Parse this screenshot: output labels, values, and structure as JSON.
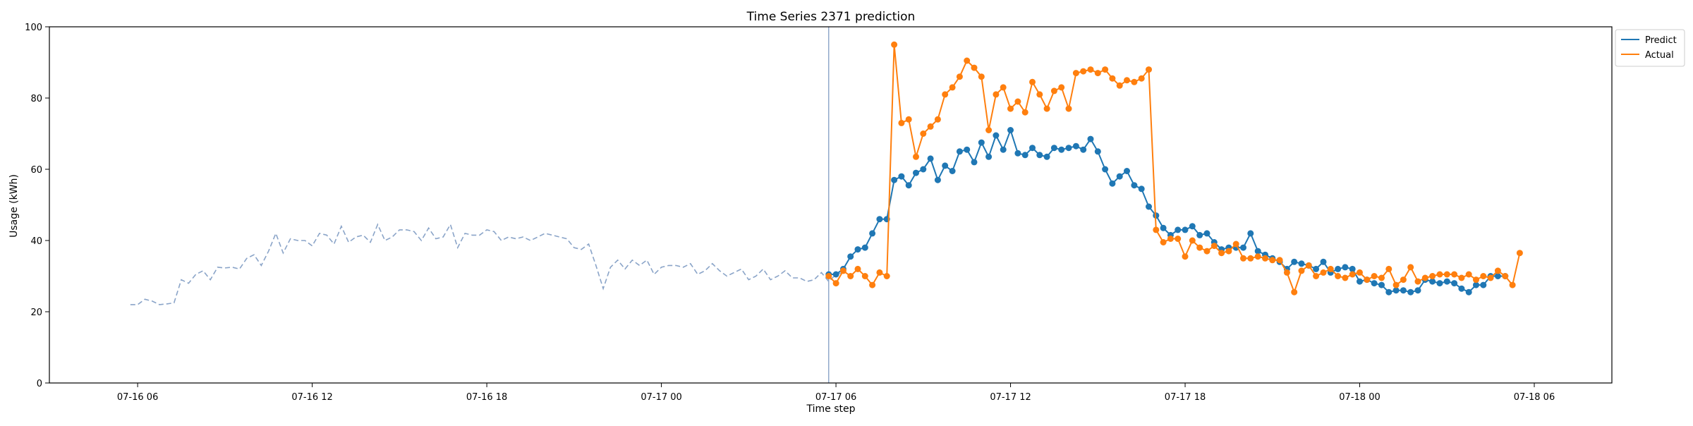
{
  "chart_data": {
    "type": "line",
    "title": "Time Series 2371 prediction",
    "xlabel": "Time step",
    "ylabel": "Usage (kWh)",
    "ylim": [
      0,
      100
    ],
    "yticks": [
      0,
      20,
      40,
      60,
      80,
      100
    ],
    "xlim": [
      "2016-07-16T02:58",
      "2016-07-18T08:40"
    ],
    "xticks": [
      {
        "t": "2016-07-16T06:00",
        "label": "07-16 06"
      },
      {
        "t": "2016-07-16T12:00",
        "label": "07-16 12"
      },
      {
        "t": "2016-07-16T18:00",
        "label": "07-16 18"
      },
      {
        "t": "2016-07-17T00:00",
        "label": "07-17 00"
      },
      {
        "t": "2016-07-17T06:00",
        "label": "07-17 06"
      },
      {
        "t": "2016-07-17T12:00",
        "label": "07-17 12"
      },
      {
        "t": "2016-07-17T18:00",
        "label": "07-17 18"
      },
      {
        "t": "2016-07-18T00:00",
        "label": "07-18 00"
      },
      {
        "t": "2016-07-18T06:00",
        "label": "07-18 06"
      }
    ],
    "grid": false,
    "legend_position": "upper-right-outside",
    "forecast_start": "2016-07-17T05:45",
    "interval_minutes": 15,
    "history": {
      "start": "2016-07-16T05:45",
      "color": "#8aa4c8",
      "style": "dashed",
      "values": [
        22,
        22,
        23.5,
        23,
        22,
        22.2,
        22.5,
        29,
        28,
        30.5,
        31.5,
        29,
        32.5,
        32.3,
        32.5,
        32,
        35,
        36,
        33,
        37,
        42,
        36.5,
        40.5,
        40,
        40,
        38.5,
        42,
        41.5,
        39,
        44,
        39.5,
        41,
        41.5,
        39.5,
        44.5,
        40,
        41,
        43,
        43,
        42.5,
        40,
        43.5,
        40.5,
        41,
        44.5,
        38,
        42,
        41.5,
        41.5,
        43,
        42.5,
        40,
        41,
        40.5,
        41,
        40,
        41,
        42,
        41.5,
        41,
        40.5,
        38,
        37.5,
        39,
        33,
        26.5,
        32.5,
        34.5,
        32,
        34.5,
        33,
        34.5,
        30.5,
        32.5,
        33,
        33,
        32.5,
        33.5,
        30.5,
        31.5,
        33.5,
        31.5,
        30,
        31,
        32,
        29,
        30,
        32,
        29,
        30,
        31.5,
        29.5,
        29.5,
        28.5,
        29,
        31,
        28.5,
        30.5,
        31
      ]
    },
    "series": [
      {
        "name": "Predict",
        "color": "#1f77b4",
        "start": "2016-07-17T05:45",
        "values": [
          30.5,
          30.5,
          32,
          35.5,
          37.5,
          38,
          42,
          46,
          46,
          57,
          58,
          55.5,
          59,
          60,
          63,
          57,
          61,
          59.5,
          65,
          65.5,
          62,
          67.5,
          63.5,
          69.5,
          65.5,
          71,
          64.5,
          64,
          66,
          64,
          63.5,
          66,
          65.5,
          66,
          66.5,
          65.5,
          68.5,
          65,
          60,
          56,
          58,
          59.5,
          55.5,
          54.5,
          49.5,
          47,
          43.5,
          41.5,
          43,
          43,
          44,
          41.5,
          42,
          39.5,
          37.5,
          38,
          38,
          38,
          42,
          37,
          36,
          35,
          34,
          32,
          34,
          33.5,
          33,
          32,
          34,
          31,
          32,
          32.5,
          32,
          28.5,
          29,
          28,
          27.5,
          25.5,
          26,
          26,
          25.5,
          26,
          29,
          28.5,
          28,
          28.5,
          28,
          26.5,
          25.5,
          27.5,
          27.5,
          30,
          30,
          30
        ]
      },
      {
        "name": "Actual",
        "color": "#ff7f0e",
        "start": "2016-07-17T05:45",
        "values": [
          30,
          28,
          31.5,
          30,
          32,
          30,
          27.5,
          31,
          30,
          95,
          73,
          74,
          63.5,
          70,
          72,
          74,
          81,
          83,
          86,
          90.5,
          88.5,
          86,
          71,
          81,
          83,
          77,
          79,
          76,
          84.5,
          81,
          77,
          82,
          83,
          77,
          87,
          87.5,
          88,
          87,
          88,
          85.5,
          83.5,
          85,
          84.5,
          85.5,
          88,
          43,
          39.5,
          40.5,
          40.5,
          35.5,
          40,
          38,
          37,
          38.5,
          36.5,
          37,
          39,
          35,
          35,
          35.5,
          35,
          34.5,
          34.5,
          31,
          25.5,
          31.5,
          33,
          30,
          31,
          32,
          30,
          29.5,
          30.5,
          31,
          29,
          30,
          29.5,
          32,
          27.5,
          29,
          32.5,
          28.5,
          29.5,
          30,
          30.5,
          30.5,
          30.5,
          29.5,
          30.5,
          29,
          30,
          29.5,
          31.5,
          30,
          27.5,
          36.5
        ]
      }
    ]
  }
}
